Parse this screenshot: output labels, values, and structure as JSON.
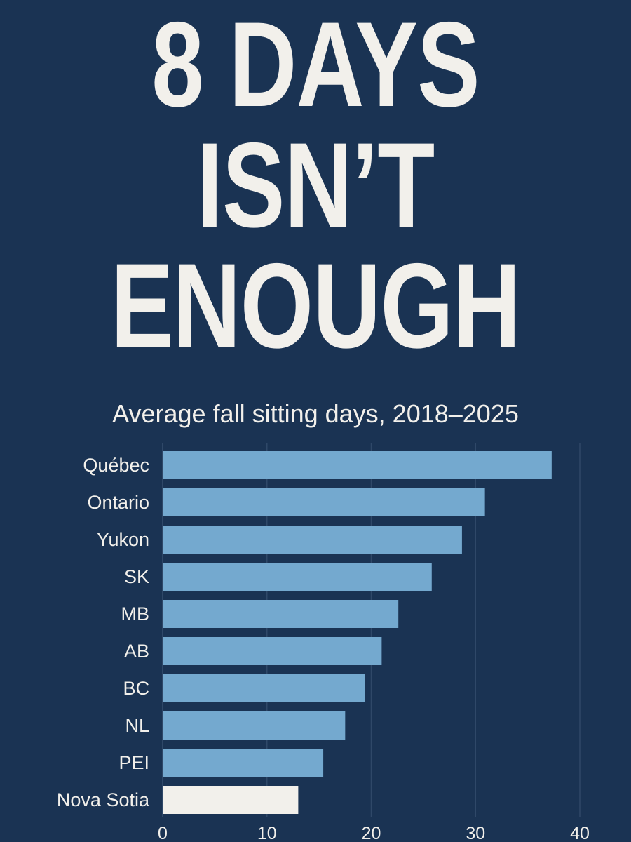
{
  "headline": {
    "line1": "8 DAYS",
    "line2": "ISN’T",
    "line3": "ENOUGH"
  },
  "colors": {
    "background": "#1a3353",
    "bar": "#74a9cf",
    "highlight_bar": "#f2f0eb",
    "text": "#f2f0eb",
    "gridline": "#2f4868"
  },
  "chart_data": {
    "type": "bar",
    "orientation": "horizontal",
    "title": "Average fall sitting days, 2018–2025",
    "categories": [
      "Québec",
      "Ontario",
      "Yukon",
      "SK",
      "MB",
      "AB",
      "BC",
      "NL",
      "PEI",
      "Nova Sotia"
    ],
    "values": [
      37.3,
      30.9,
      28.7,
      25.8,
      22.6,
      21.0,
      19.4,
      17.5,
      15.4,
      13.0
    ],
    "highlight": "Nova Sotia",
    "xlim": [
      0,
      40
    ],
    "xticks": [
      0,
      10,
      20,
      30,
      40
    ],
    "xlabel": "",
    "ylabel": "",
    "grid": "vertical"
  }
}
